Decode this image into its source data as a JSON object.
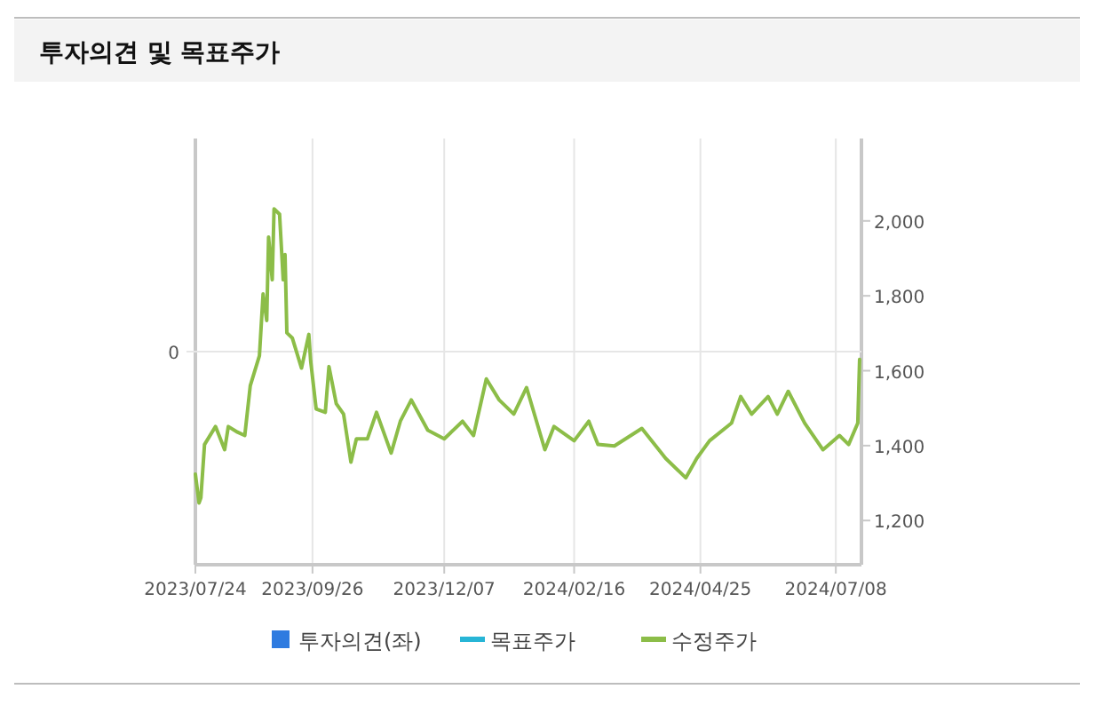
{
  "chart_data": {
    "type": "line",
    "title": "투자의견 및 목표주가",
    "x": [
      "2023-07-24",
      "2023-07-26",
      "2023-07-27",
      "2023-07-29",
      "2023-08-04",
      "2023-08-09",
      "2023-08-11",
      "2023-08-16",
      "2023-08-20",
      "2023-08-23",
      "2023-08-28",
      "2023-08-30",
      "2023-09-01",
      "2023-09-02",
      "2023-09-04",
      "2023-09-05",
      "2023-09-08",
      "2023-09-10",
      "2023-09-11",
      "2023-09-12",
      "2023-09-15",
      "2023-09-20",
      "2023-09-24",
      "2023-09-25",
      "2023-09-28",
      "2023-10-03",
      "2023-10-05",
      "2023-10-09",
      "2023-10-13",
      "2023-10-17",
      "2023-10-20",
      "2023-10-26",
      "2023-10-31",
      "2023-11-08",
      "2023-11-13",
      "2023-11-19",
      "2023-11-28",
      "2023-12-07",
      "2023-12-17",
      "2023-12-23",
      "2023-12-30",
      "2024-01-06",
      "2024-01-14",
      "2024-01-21",
      "2024-01-31",
      "2024-02-05",
      "2024-02-16",
      "2024-02-24",
      "2024-02-29",
      "2024-03-09",
      "2024-03-24",
      "2024-04-06",
      "2024-04-17",
      "2024-04-23",
      "2024-04-30",
      "2024-05-12",
      "2024-05-17",
      "2024-05-23",
      "2024-06-01",
      "2024-06-06",
      "2024-06-12",
      "2024-06-21",
      "2024-07-01",
      "2024-07-10",
      "2024-07-15",
      "2024-07-20",
      "2024-07-21"
    ],
    "series": [
      {
        "name": "투자의견(좌)",
        "type": "bar",
        "color": "#2e7be0",
        "values": [
          null,
          null,
          null,
          null,
          null,
          null,
          null,
          null,
          null,
          null,
          null,
          null,
          null,
          null,
          null,
          null,
          null,
          null,
          null,
          null,
          null,
          null,
          null,
          null,
          null,
          null,
          null,
          null,
          null,
          null,
          null,
          null,
          null,
          null,
          null,
          null,
          null,
          null,
          null,
          null,
          null,
          null,
          null,
          null,
          null,
          null,
          null,
          null,
          null,
          null,
          null,
          null,
          null,
          null,
          null,
          null,
          null,
          null,
          null,
          null,
          null,
          null,
          null,
          null,
          null,
          null,
          null
        ]
      },
      {
        "name": "목표주가",
        "axis": "y2",
        "color": "#27b5d6",
        "values": [
          null,
          null,
          null,
          null,
          null,
          null,
          null,
          null,
          null,
          null,
          null,
          null,
          null,
          null,
          null,
          null,
          null,
          null,
          null,
          null,
          null,
          null,
          null,
          null,
          null,
          null,
          null,
          null,
          null,
          null,
          null,
          null,
          null,
          null,
          null,
          null,
          null,
          null,
          null,
          null,
          null,
          null,
          null,
          null,
          null,
          null,
          null,
          null,
          null,
          null,
          null,
          null,
          null,
          null,
          null,
          null,
          null,
          null,
          null,
          null,
          null,
          null,
          null,
          null,
          null,
          null,
          null
        ]
      },
      {
        "name": "수정주가",
        "axis": "y2",
        "color": "#8cbd48",
        "values": [
          1324,
          1247,
          1261,
          1403,
          1451,
          1389,
          1451,
          1436,
          1427,
          1560,
          1640,
          1805,
          1734,
          1957,
          1843,
          2032,
          2018,
          1843,
          1910,
          1701,
          1687,
          1607,
          1697,
          1626,
          1498,
          1489,
          1611,
          1512,
          1484,
          1356,
          1418,
          1418,
          1489,
          1380,
          1465,
          1522,
          1441,
          1418,
          1465,
          1427,
          1578,
          1522,
          1484,
          1555,
          1389,
          1451,
          1413,
          1465,
          1403,
          1399,
          1446,
          1366,
          1314,
          1366,
          1413,
          1460,
          1531,
          1484,
          1531,
          1484,
          1545,
          1460,
          1389,
          1427,
          1403,
          1460,
          1630
        ]
      }
    ],
    "xlim": [
      "2023-07-24",
      "2024-07-22"
    ],
    "xticks": [
      {
        "value": "2023-07-24",
        "label": "2023/07/24"
      },
      {
        "value": "2023-09-26",
        "label": "2023/09/26"
      },
      {
        "value": "2023-12-07",
        "label": "2023/12/07"
      },
      {
        "value": "2024-02-16",
        "label": "2024/02/16"
      },
      {
        "value": "2024-04-25",
        "label": "2024/04/25"
      },
      {
        "value": "2024-07-08",
        "label": "2024/07/08"
      }
    ],
    "annotations": [
      "0"
    ],
    "y2lim": [
      1082,
      2220
    ],
    "y2ticks": [
      {
        "value": 1200,
        "label": "1,200"
      },
      {
        "value": 1400,
        "label": "1,400"
      },
      {
        "value": 1600,
        "label": "1,600"
      },
      {
        "value": 1800,
        "label": "1,800"
      },
      {
        "value": 2000,
        "label": "2,000"
      }
    ],
    "grid": "x",
    "legend": "bottom"
  }
}
